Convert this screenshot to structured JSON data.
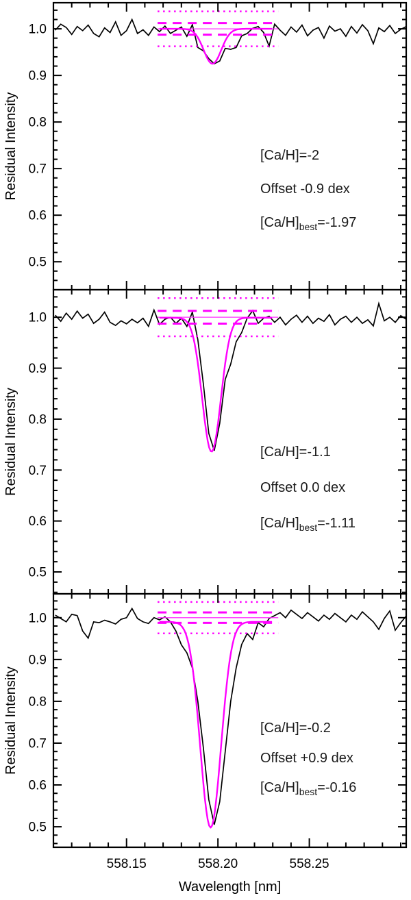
{
  "chart_data": {
    "type": "line",
    "title": "",
    "xlabel": "Wavelength [nm]",
    "ylabel": "Residual Intensity",
    "xlim": [
      558.11,
      558.303
    ],
    "x_major_ticks": [
      558.15,
      558.2,
      558.25
    ],
    "x_major_tick_labels": [
      "558.15",
      "558.20",
      "558.25"
    ],
    "x_minor_tick_step": 0.01,
    "y_major_ticks": [
      1.0,
      0.9,
      0.8,
      0.7,
      0.6,
      0.5
    ],
    "y_major_tick_labels": [
      "1.0",
      "0.9",
      "0.8",
      "0.7",
      "0.6",
      "0.5"
    ],
    "y_minor_tick_step": 0.02,
    "grid": false,
    "legend": "none",
    "colors": {
      "spectrum": "#000000",
      "fit": "#ff00ff",
      "background": "#ffffff"
    },
    "reference_lines": {
      "x_range": [
        558.167,
        558.233
      ],
      "solid_y": 1.0,
      "dashed_y": [
        1.0125,
        0.9875
      ],
      "dotted_y": [
        1.0375,
        0.9625
      ]
    },
    "panels": [
      {
        "ylim": [
          0.44,
          1.056
        ],
        "annotations": {
          "line1": "[Ca/H]=-2",
          "line2": "Offset -0.9 dex",
          "line3_prefix": "[Ca/H]",
          "line3_sub": "best",
          "line3_value": "=-1.97"
        },
        "fit": {
          "window": [
            558.168,
            558.23
          ],
          "continuum": 1.0,
          "center": 558.197,
          "sigma": 0.0048,
          "min_intensity": 0.925
        },
        "spectrum": {
          "x_start": 558.111,
          "x_step": 0.003,
          "y": [
            0.997,
            1.01,
            1.003,
            0.988,
            1.005,
            0.996,
            1.008,
            0.99,
            0.983,
            1.002,
            0.992,
            1.015,
            0.986,
            0.996,
            1.02,
            0.99,
            0.998,
            0.986,
            1.004,
            0.994,
            1.006,
            0.99,
            0.997,
            1.004,
            0.984,
            1.009,
            0.96,
            0.953,
            0.936,
            0.925,
            0.931,
            0.958,
            0.956,
            0.96,
            0.985,
            0.99,
            1.001,
            1.005,
            0.992,
            0.963,
            1.01,
            0.997,
            0.986,
            1.004,
            0.993,
            1.008,
            0.985,
            0.997,
            1.003,
            0.98,
            1.006,
            0.995,
            1.0,
            0.984,
            1.005,
            0.991,
            1.009,
            0.996,
            0.968,
            1.002,
            0.994,
            1.007,
            0.99,
            0.999,
            1.005
          ]
        }
      },
      {
        "ylim": [
          0.457,
          1.054
        ],
        "annotations": {
          "line1": "[Ca/H]=-1.1",
          "line2": "Offset 0.0 dex",
          "line3_prefix": "[Ca/H]",
          "line3_sub": "best",
          "line3_value": "=-1.11"
        },
        "fit": {
          "window": [
            558.168,
            558.23
          ],
          "continuum": 0.999,
          "center": 558.1965,
          "sigma": 0.0051,
          "min_intensity": 0.736
        },
        "spectrum": {
          "x_start": 558.111,
          "x_step": 0.003,
          "y": [
            1.004,
            0.992,
            1.008,
            0.996,
            1.012,
            0.998,
            1.006,
            0.988,
            0.996,
            1.01,
            0.99,
            0.984,
            0.993,
            0.987,
            0.996,
            0.989,
            0.998,
            0.982,
            1.014,
            0.986,
            0.996,
            1.0,
            0.988,
            0.998,
            0.982,
            1.01,
            0.956,
            0.87,
            0.772,
            0.738,
            0.792,
            0.878,
            0.908,
            0.952,
            0.97,
            0.998,
            1.013,
            0.988,
            0.998,
            1.002,
            0.99,
            1.0,
            0.985,
            0.996,
            1.004,
            0.99,
            1.002,
            0.988,
            0.998,
            0.992,
            1.005,
            0.985,
            0.996,
            1.002,
            0.99,
            1.0,
            0.988,
            0.995,
            0.983,
            1.027,
            0.993,
            1.0,
            0.99,
            1.003,
            0.996
          ]
        }
      },
      {
        "ylim": [
          0.451,
          1.057
        ],
        "annotations": {
          "line1": "[Ca/H]=-0.2",
          "line2": "Offset +0.9 dex",
          "line3_prefix": "[Ca/H]",
          "line3_sub": "best",
          "line3_value": "=-0.16"
        },
        "fit": {
          "window": [
            558.168,
            558.23
          ],
          "continuum": 0.99,
          "center": 558.196,
          "sigma": 0.0057,
          "min_intensity": 0.498
        },
        "spectrum": {
          "x_start": 558.111,
          "x_step": 0.003,
          "y": [
            1.006,
            0.998,
            0.99,
            1.008,
            1.005,
            0.968,
            0.951,
            0.99,
            0.988,
            0.994,
            0.99,
            0.985,
            0.996,
            1.0,
            1.022,
            0.998,
            0.99,
            0.986,
            1.0,
            0.995,
            1.002,
            0.99,
            0.968,
            0.935,
            0.916,
            0.88,
            0.8,
            0.69,
            0.565,
            0.505,
            0.56,
            0.68,
            0.8,
            0.88,
            0.936,
            0.962,
            0.948,
            0.988,
            0.978,
            0.998,
            1.005,
            1.012,
            1.0,
            1.018,
            1.008,
            0.998,
            1.012,
            1.002,
            0.992,
            1.006,
            0.996,
            1.01,
            1.0,
            0.99,
            1.006,
            0.996,
            1.014,
            1.002,
            0.99,
            0.972,
            0.998,
            1.016,
            0.97,
            0.988,
            1.004
          ]
        }
      }
    ]
  }
}
